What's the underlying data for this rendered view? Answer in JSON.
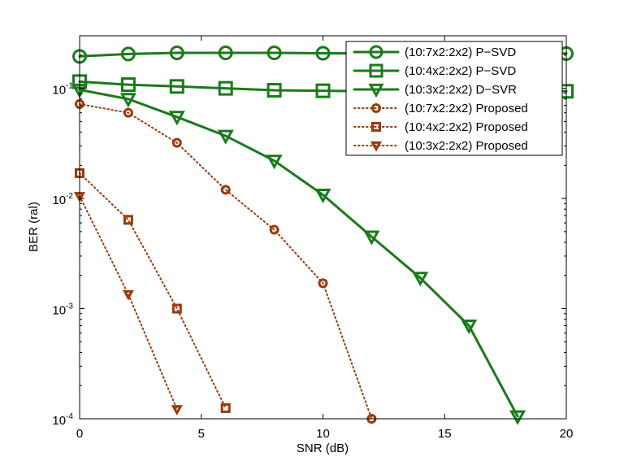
{
  "chart_data": {
    "type": "line",
    "title": "",
    "xlabel": "SNR (dB)",
    "ylabel": "BER (ral)",
    "xlim": [
      0,
      20
    ],
    "ylim": [
      0.0001,
      0.3
    ],
    "yscale": "log",
    "grid": false,
    "legend_position": "top-right",
    "x_ticks": [
      {
        "value": 0,
        "label": "0"
      },
      {
        "value": 5,
        "label": "5"
      },
      {
        "value": 10,
        "label": "10"
      },
      {
        "value": 15,
        "label": "15"
      },
      {
        "value": 20,
        "label": "20"
      }
    ],
    "y_ticks": [
      {
        "value": 0.1,
        "base": "10",
        "exp": "-1"
      },
      {
        "value": 0.01,
        "base": "10",
        "exp": "-2"
      },
      {
        "value": 0.001,
        "base": "10",
        "exp": "-3"
      },
      {
        "value": 0.0001,
        "base": "10",
        "exp": "-4"
      }
    ],
    "series": [
      {
        "name": "(10:7x2:2x2) P−SVD",
        "color": "#1a7a1a",
        "line": "solid",
        "marker": "circle",
        "x": [
          0,
          2,
          4,
          6,
          8,
          10,
          12,
          14,
          16,
          18,
          20
        ],
        "y": [
          0.195,
          0.205,
          0.21,
          0.21,
          0.21,
          0.208,
          0.207,
          0.207,
          0.207,
          0.207,
          0.207
        ]
      },
      {
        "name": "(10:4x2:2x2) P−SVD",
        "color": "#1a7a1a",
        "line": "solid",
        "marker": "square",
        "x": [
          0,
          2,
          4,
          6,
          8,
          10,
          12,
          14,
          16,
          18,
          20
        ],
        "y": [
          0.115,
          0.108,
          0.104,
          0.1,
          0.096,
          0.095,
          0.094,
          0.094,
          0.094,
          0.094,
          0.094
        ]
      },
      {
        "name": "(10:3x2:2x2) D−SVR",
        "color": "#1a7a1a",
        "line": "solid",
        "marker": "triangle-down",
        "x": [
          0,
          2,
          4,
          6,
          8,
          10,
          12,
          14,
          16,
          18
        ],
        "y": [
          0.097,
          0.08,
          0.055,
          0.037,
          0.022,
          0.0108,
          0.0045,
          0.0019,
          0.0007,
          0.000105
        ]
      },
      {
        "name": "(10:7x2:2x2) Proposed",
        "color": "#9a3a0a",
        "line": "dotted",
        "marker": "circle",
        "x": [
          0,
          2,
          4,
          6,
          8,
          10,
          12
        ],
        "y": [
          0.072,
          0.06,
          0.032,
          0.012,
          0.0052,
          0.0017,
          0.0001
        ]
      },
      {
        "name": "(10:4x2:2x2) Proposed",
        "color": "#9a3a0a",
        "line": "dotted",
        "marker": "square",
        "x": [
          0,
          2,
          4,
          6
        ],
        "y": [
          0.017,
          0.0064,
          0.001,
          0.000125
        ]
      },
      {
        "name": "(10:3x2:2x2) Proposed",
        "color": "#9a3a0a",
        "line": "dotted",
        "marker": "triangle-down",
        "x": [
          0,
          2,
          4
        ],
        "y": [
          0.0105,
          0.00135,
          0.000122
        ]
      }
    ]
  }
}
